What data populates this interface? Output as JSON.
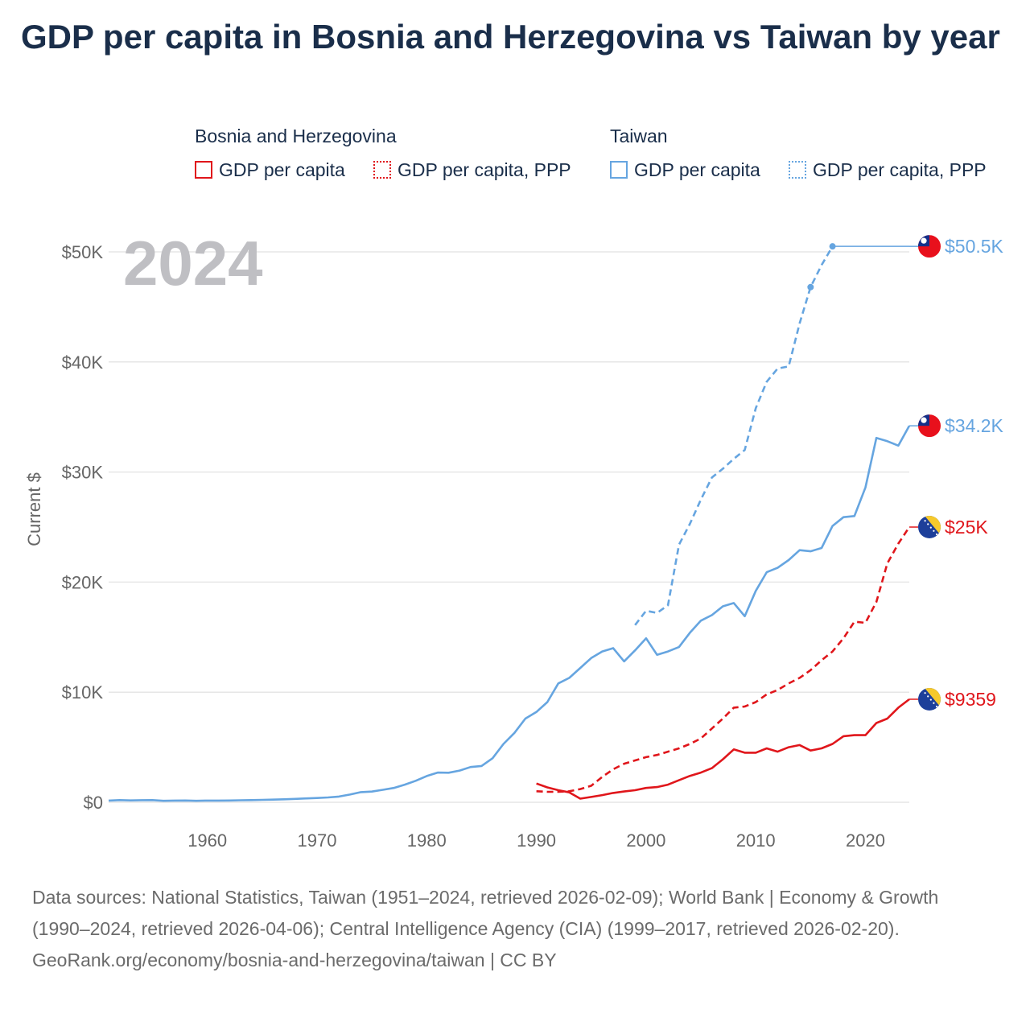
{
  "title": "GDP per capita in Bosnia and Herzegovina vs Taiwan by year",
  "legend": {
    "groups": [
      {
        "name": "Bosnia and Herzegovina",
        "items": [
          "GDP per capita",
          "GDP per capita, PPP"
        ]
      },
      {
        "name": "Taiwan",
        "items": [
          "GDP per capita",
          "GDP per capita, PPP"
        ]
      }
    ]
  },
  "colors": {
    "bih": "#e0161b",
    "taiwan": "#66a5e0",
    "grid": "#e6e6e6",
    "axis_text": "#666666",
    "year_watermark": "#bfbfc3"
  },
  "sources": {
    "line1": "Data sources: National Statistics, Taiwan (1951–2024, retrieved 2026-02-09); World Bank | Economy & Growth (1990–2024, retrieved 2026-04-06); Central Intelligence Agency (CIA) (1999–2017, retrieved 2026-02-20).",
    "line2": "GeoRank.org/economy/bosnia-and-herzegovina/taiwan | CC BY"
  },
  "chart_data": {
    "type": "line",
    "title": "GDP per capita in Bosnia and Herzegovina vs Taiwan by year",
    "current_year_label": "2024",
    "ylabel": "Current $",
    "xlabel": "",
    "xlim": [
      1951,
      2024
    ],
    "ylim": [
      0,
      50000
    ],
    "x_ticks": [
      1960,
      1970,
      1980,
      1990,
      2000,
      2010,
      2020
    ],
    "y_ticks": [
      0,
      10000,
      20000,
      30000,
      40000,
      50000
    ],
    "y_tick_labels": [
      "$0",
      "$10K",
      "$20K",
      "$30K",
      "$40K",
      "$50K"
    ],
    "grid": true,
    "series": [
      {
        "name": "Taiwan GDP per capita",
        "country": "taiwan",
        "style": "solid",
        "end_label": "$34.2K",
        "points": [
          [
            1951,
            150
          ],
          [
            1952,
            200
          ],
          [
            1953,
            170
          ],
          [
            1954,
            190
          ],
          [
            1955,
            200
          ],
          [
            1956,
            130
          ],
          [
            1957,
            150
          ],
          [
            1958,
            160
          ],
          [
            1959,
            130
          ],
          [
            1960,
            150
          ],
          [
            1961,
            150
          ],
          [
            1962,
            160
          ],
          [
            1963,
            180
          ],
          [
            1964,
            200
          ],
          [
            1965,
            220
          ],
          [
            1966,
            240
          ],
          [
            1967,
            270
          ],
          [
            1968,
            310
          ],
          [
            1969,
            350
          ],
          [
            1970,
            390
          ],
          [
            1971,
            440
          ],
          [
            1972,
            520
          ],
          [
            1973,
            700
          ],
          [
            1974,
            920
          ],
          [
            1975,
            970
          ],
          [
            1976,
            1130
          ],
          [
            1977,
            1300
          ],
          [
            1978,
            1600
          ],
          [
            1979,
            1950
          ],
          [
            1980,
            2380
          ],
          [
            1981,
            2700
          ],
          [
            1982,
            2680
          ],
          [
            1983,
            2880
          ],
          [
            1984,
            3200
          ],
          [
            1985,
            3300
          ],
          [
            1986,
            4000
          ],
          [
            1987,
            5300
          ],
          [
            1988,
            6300
          ],
          [
            1989,
            7600
          ],
          [
            1990,
            8200
          ],
          [
            1991,
            9100
          ],
          [
            1992,
            10800
          ],
          [
            1993,
            11300
          ],
          [
            1994,
            12200
          ],
          [
            1995,
            13100
          ],
          [
            1996,
            13700
          ],
          [
            1997,
            14000
          ],
          [
            1998,
            12800
          ],
          [
            1999,
            13800
          ],
          [
            2000,
            14900
          ],
          [
            2001,
            13400
          ],
          [
            2002,
            13700
          ],
          [
            2003,
            14100
          ],
          [
            2004,
            15400
          ],
          [
            2005,
            16500
          ],
          [
            2006,
            17000
          ],
          [
            2007,
            17800
          ],
          [
            2008,
            18100
          ],
          [
            2009,
            16900
          ],
          [
            2010,
            19200
          ],
          [
            2011,
            20900
          ],
          [
            2012,
            21300
          ],
          [
            2013,
            22000
          ],
          [
            2014,
            22900
          ],
          [
            2015,
            22800
          ],
          [
            2016,
            23100
          ],
          [
            2017,
            25100
          ],
          [
            2018,
            25900
          ],
          [
            2019,
            26000
          ],
          [
            2020,
            28600
          ],
          [
            2021,
            33100
          ],
          [
            2022,
            32800
          ],
          [
            2023,
            32400
          ],
          [
            2024,
            34200
          ]
        ]
      },
      {
        "name": "Taiwan GDP per capita, PPP",
        "country": "taiwan",
        "style": "dashed",
        "end_label": "$50.5K",
        "points": [
          [
            1999,
            16100
          ],
          [
            2000,
            17400
          ],
          [
            2001,
            17200
          ],
          [
            2002,
            17900
          ],
          [
            2003,
            23400
          ],
          [
            2004,
            25300
          ],
          [
            2005,
            27500
          ],
          [
            2006,
            29500
          ],
          [
            2007,
            30300
          ],
          [
            2008,
            31200
          ],
          [
            2009,
            32000
          ],
          [
            2010,
            35800
          ],
          [
            2011,
            38200
          ],
          [
            2012,
            39400
          ],
          [
            2013,
            39600
          ],
          [
            2014,
            43500
          ],
          [
            2015,
            46800
          ],
          [
            2016,
            48800
          ],
          [
            2017,
            50500
          ]
        ],
        "markers": [
          [
            2015,
            46800
          ],
          [
            2017,
            50500
          ]
        ],
        "carry_forward": [
          [
            2017,
            50500
          ],
          [
            2024,
            50500
          ]
        ]
      },
      {
        "name": "Bosnia and Herzegovina GDP per capita",
        "country": "bih",
        "style": "solid",
        "end_label": "$9359",
        "points": [
          [
            1990,
            1700
          ],
          [
            1991,
            1350
          ],
          [
            1992,
            1100
          ],
          [
            1993,
            900
          ],
          [
            1994,
            330
          ],
          [
            1995,
            480
          ],
          [
            1996,
            650
          ],
          [
            1997,
            850
          ],
          [
            1998,
            980
          ],
          [
            1999,
            1100
          ],
          [
            2000,
            1300
          ],
          [
            2001,
            1380
          ],
          [
            2002,
            1600
          ],
          [
            2003,
            2000
          ],
          [
            2004,
            2400
          ],
          [
            2005,
            2700
          ],
          [
            2006,
            3100
          ],
          [
            2007,
            3900
          ],
          [
            2008,
            4800
          ],
          [
            2009,
            4500
          ],
          [
            2010,
            4500
          ],
          [
            2011,
            4900
          ],
          [
            2012,
            4600
          ],
          [
            2013,
            5000
          ],
          [
            2014,
            5200
          ],
          [
            2015,
            4700
          ],
          [
            2016,
            4900
          ],
          [
            2017,
            5300
          ],
          [
            2018,
            6000
          ],
          [
            2019,
            6100
          ],
          [
            2020,
            6100
          ],
          [
            2021,
            7200
          ],
          [
            2022,
            7600
          ],
          [
            2023,
            8600
          ],
          [
            2024,
            9359
          ]
        ]
      },
      {
        "name": "Bosnia and Herzegovina GDP per capita, PPP",
        "country": "bih",
        "style": "dashed",
        "end_label": "$25K",
        "points": [
          [
            1990,
            1000
          ],
          [
            1991,
            950
          ],
          [
            1992,
            950
          ],
          [
            1993,
            1000
          ],
          [
            1994,
            1200
          ],
          [
            1995,
            1500
          ],
          [
            1996,
            2300
          ],
          [
            1997,
            3000
          ],
          [
            1998,
            3500
          ],
          [
            1999,
            3800
          ],
          [
            2000,
            4100
          ],
          [
            2001,
            4300
          ],
          [
            2002,
            4600
          ],
          [
            2003,
            4900
          ],
          [
            2004,
            5300
          ],
          [
            2005,
            5800
          ],
          [
            2006,
            6700
          ],
          [
            2007,
            7600
          ],
          [
            2008,
            8600
          ],
          [
            2009,
            8700
          ],
          [
            2010,
            9100
          ],
          [
            2011,
            9800
          ],
          [
            2012,
            10200
          ],
          [
            2013,
            10800
          ],
          [
            2014,
            11300
          ],
          [
            2015,
            12000
          ],
          [
            2016,
            12900
          ],
          [
            2017,
            13700
          ],
          [
            2018,
            14900
          ],
          [
            2019,
            16400
          ],
          [
            2020,
            16300
          ],
          [
            2021,
            18200
          ],
          [
            2022,
            21700
          ],
          [
            2023,
            23500
          ],
          [
            2024,
            25000
          ]
        ]
      }
    ]
  }
}
